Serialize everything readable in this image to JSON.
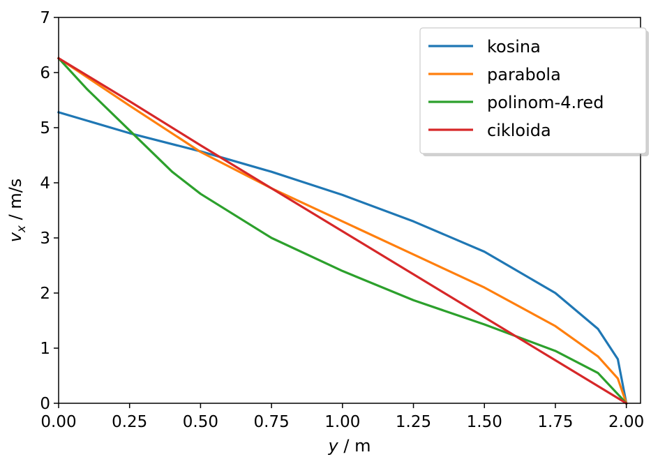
{
  "chart_data": {
    "type": "line",
    "xlabel_var": "y",
    "xlabel_unit": " / m",
    "ylabel_var": "v",
    "ylabel_sub": "x",
    "ylabel_unit": " / m/s",
    "xlim": [
      0,
      2.05
    ],
    "ylim": [
      0,
      7
    ],
    "xticks": [
      "0.00",
      "0.25",
      "0.50",
      "0.75",
      "1.00",
      "1.25",
      "1.50",
      "1.75",
      "2.00"
    ],
    "yticks": [
      "0",
      "1",
      "2",
      "3",
      "4",
      "5",
      "6",
      "7"
    ],
    "grid": false,
    "legend_position": "top-right",
    "series": [
      {
        "name": "kosina",
        "color": "#1f77b4",
        "x": [
          0,
          0.25,
          0.5,
          0.75,
          1.0,
          1.25,
          1.5,
          1.75,
          1.9,
          1.97,
          2.0
        ],
        "y": [
          5.28,
          4.9,
          4.57,
          4.2,
          3.78,
          3.3,
          2.75,
          2.0,
          1.35,
          0.8,
          0.0
        ]
      },
      {
        "name": "parabola",
        "color": "#ff7f0e",
        "x": [
          0,
          0.25,
          0.5,
          0.75,
          1.0,
          1.25,
          1.5,
          1.75,
          1.9,
          1.97,
          2.0
        ],
        "y": [
          6.26,
          5.4,
          4.56,
          3.9,
          3.3,
          2.7,
          2.1,
          1.4,
          0.85,
          0.45,
          0.0
        ]
      },
      {
        "name": "polinom-4.red",
        "color": "#2ca02c",
        "x": [
          0,
          0.1,
          0.25,
          0.4,
          0.5,
          0.75,
          1.0,
          1.25,
          1.5,
          1.75,
          1.9,
          2.0
        ],
        "y": [
          6.26,
          5.7,
          4.95,
          4.2,
          3.8,
          3.0,
          2.4,
          1.87,
          1.43,
          0.95,
          0.55,
          0.0
        ]
      },
      {
        "name": "cikloida",
        "color": "#d62728",
        "x": [
          0,
          0.25,
          0.5,
          0.75,
          1.0,
          1.25,
          1.5,
          1.75,
          2.0
        ],
        "y": [
          6.26,
          5.48,
          4.68,
          3.9,
          3.12,
          2.34,
          1.56,
          0.78,
          0.0
        ]
      }
    ]
  }
}
